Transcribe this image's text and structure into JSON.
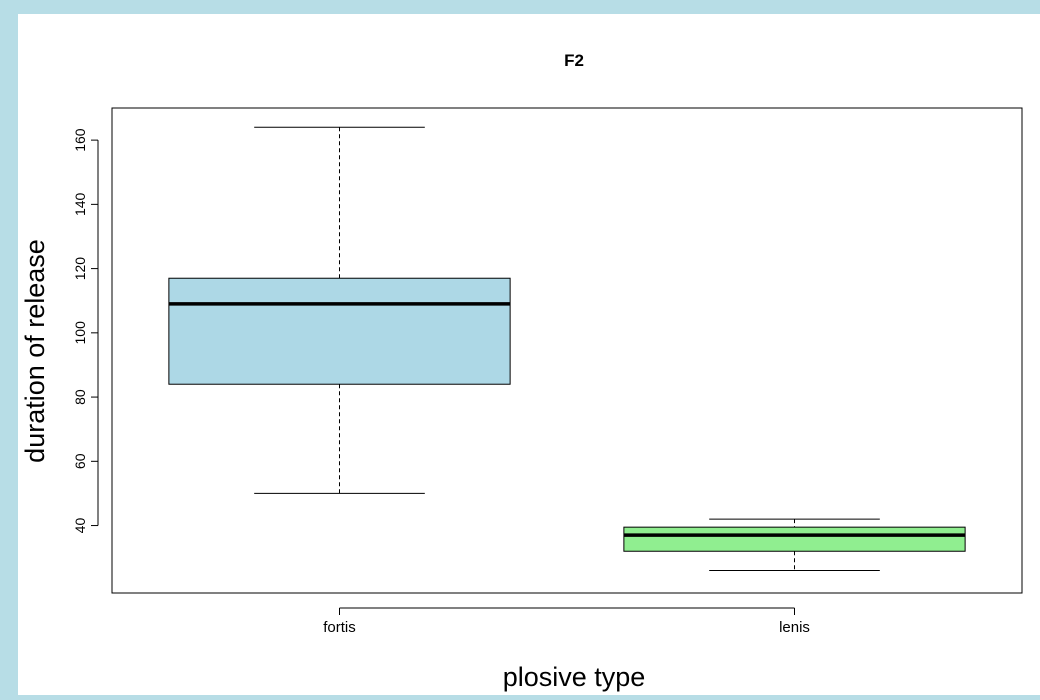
{
  "page": {
    "background": "#b7dde6",
    "plot_background": "#ffffff"
  },
  "chart_data": {
    "type": "boxplot",
    "title": "F2",
    "xlabel": "plosive type",
    "ylabel": "duration of release",
    "ylim": [
      19,
      170
    ],
    "yticks": [
      40,
      60,
      80,
      100,
      120,
      140,
      160
    ],
    "ytick_labels": [
      "40",
      "60",
      "80",
      "100",
      "120",
      "140",
      "160"
    ],
    "grid": false,
    "legend": "none",
    "categories": [
      "fortis",
      "lenis"
    ],
    "boxes": [
      {
        "category": "fortis",
        "min": 50,
        "q1": 84,
        "median": 109,
        "q3": 117,
        "max": 164,
        "color": "#add8e6"
      },
      {
        "category": "lenis",
        "min": 26,
        "q1": 32,
        "median": 37,
        "q3": 39.5,
        "max": 42,
        "color": "#90ee90"
      }
    ]
  }
}
